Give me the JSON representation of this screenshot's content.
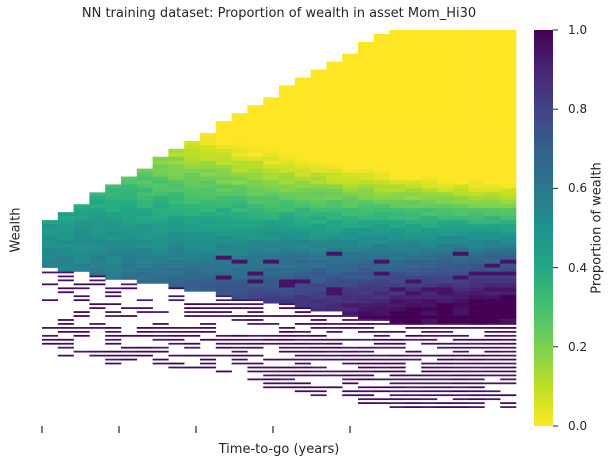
{
  "chart_data": {
    "type": "heatmap",
    "title": "NN training dataset: Proportion of wealth in asset Mom_Hi30",
    "xlabel": "Time-to-go (years)",
    "ylabel": "Wealth",
    "colorbar": {
      "label": "Proportion of wealth",
      "min": 0.0,
      "max": 1.0,
      "ticks": [
        "0.0",
        "0.2",
        "0.4",
        "0.6",
        "0.8",
        "1.0"
      ],
      "colormap": "viridis_r"
    },
    "x_tick_count": 5,
    "columns": 30,
    "rows": 100,
    "description_values": "proportion rises from ~0.45 near middle wealth to ~1.0 at low wealth and falls to ~0.0 at high wealth as time-to-go decreases"
  }
}
